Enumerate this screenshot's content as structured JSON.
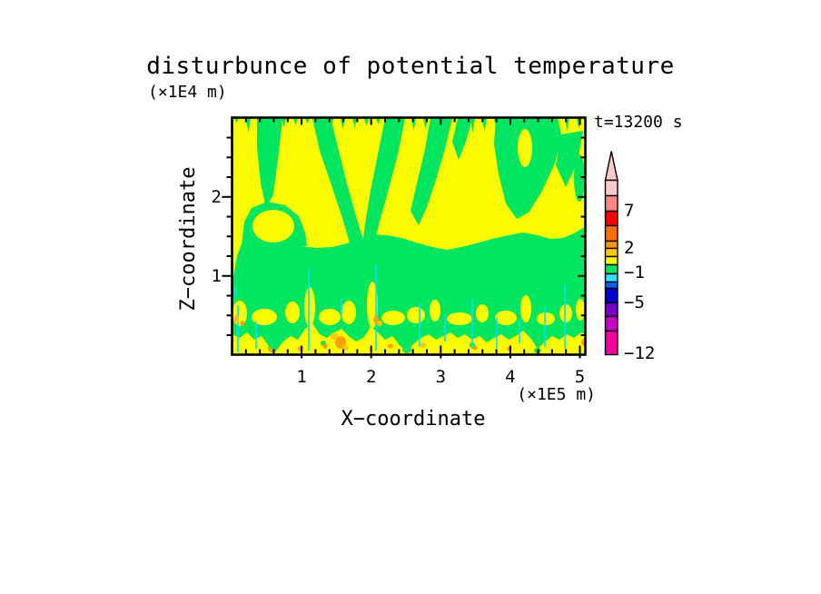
{
  "title": "disturbunce of potential temperature",
  "annotations": {
    "time": "t=13200 s"
  },
  "x_axis": {
    "axis_label": "X−coordinate",
    "unit_label": "(×1E5 m)",
    "major_ticks": [
      {
        "label": "1",
        "value": 1
      },
      {
        "label": "2",
        "value": 2
      },
      {
        "label": "3",
        "value": 3
      },
      {
        "label": "4",
        "value": 4
      },
      {
        "label": "5",
        "value": 5
      }
    ]
  },
  "z_axis": {
    "axis_label": "Z−coordinate",
    "unit_label": "(×1E4 m)",
    "major_ticks": [
      {
        "label": "1",
        "value": 1
      },
      {
        "label": "2",
        "value": 2
      }
    ]
  },
  "colorbar": {
    "segments": [
      {
        "color": "#FFC9C9",
        "height": 17
      },
      {
        "color": "#FF8585",
        "height": 17
      },
      {
        "color": "#FB0000",
        "height": 16
      },
      {
        "color": "#FF6E00",
        "height": 17
      },
      {
        "color": "#FF9800",
        "height": 8
      },
      {
        "color": "#FFC800",
        "height": 9
      },
      {
        "color": "#F8F800",
        "height": 9
      },
      {
        "color": "#00E55F",
        "height": 10
      },
      {
        "color": "#2BE2FF",
        "height": 9
      },
      {
        "color": "#0064FF",
        "height": 7
      },
      {
        "color": "#0000D2",
        "height": 16
      },
      {
        "color": "#7700C8",
        "height": 15
      },
      {
        "color": "#C800C8",
        "height": 16
      },
      {
        "color": "#F2009E",
        "height": 26
      }
    ],
    "arrow_color": "#FFC9C9",
    "labels": [
      {
        "text": "7",
        "y": 231.5
      },
      {
        "text": "2",
        "y": 273
      },
      {
        "text": "−1",
        "y": 300
      },
      {
        "text": "−5",
        "y": 333
      },
      {
        "text": "−12",
        "y": 389
      }
    ]
  },
  "palette": {
    "field_yellow": "#FBFB00",
    "field_green": "#00E55F",
    "field_cyan": "#00E1FF",
    "field_orange": "#FFA000",
    "field_gold": "#FFC800",
    "frame_black": "#000000",
    "background": "#FFFFFF"
  },
  "chart_data": {
    "type": "heatmap",
    "title": "disturbunce of potential temperature",
    "xlabel": "X−coordinate",
    "ylabel": "Z−coordinate",
    "x_unit": "×1E5 m",
    "y_unit": "×1E4 m",
    "xlim": [
      0,
      5.1
    ],
    "ylim": [
      0,
      3.0
    ],
    "x_major_ticks": [
      1,
      2,
      3,
      4,
      5
    ],
    "x_minor_tick_step": 0.2,
    "y_major_ticks": [
      1,
      2
    ],
    "y_minor_tick_step": 0.25,
    "time": "t=13200 s",
    "grid": false,
    "colorbar": {
      "orientation": "vertical",
      "position": "right",
      "arrow": "top",
      "labeled_levels": [
        7,
        2,
        -1,
        -5,
        -12
      ],
      "range_bottom": -12,
      "range_top": 11
    },
    "field_regions": [
      {
        "z_range": [
          1.6,
          3.0
        ],
        "value_band": "1 to 2 (yellow) dominant",
        "detail": "green streaks, columns and diagonal V-shaped bands (values -1 to 1) descending from the top edge"
      },
      {
        "z_range": [
          0.7,
          1.6
        ],
        "value_band": "-1 to 1 (green)",
        "detail": "uniform green layer across full width; isolated yellow oval near x=0.6, z=1.6"
      },
      {
        "z_range": [
          0.0,
          0.7
        ],
        "value_band": "mixed",
        "detail": "mottled yellow blobs (1 to 2) over green, thin vertical cyan filaments (about -2), small orange spots (2 to 3) near the surface layer"
      }
    ]
  }
}
